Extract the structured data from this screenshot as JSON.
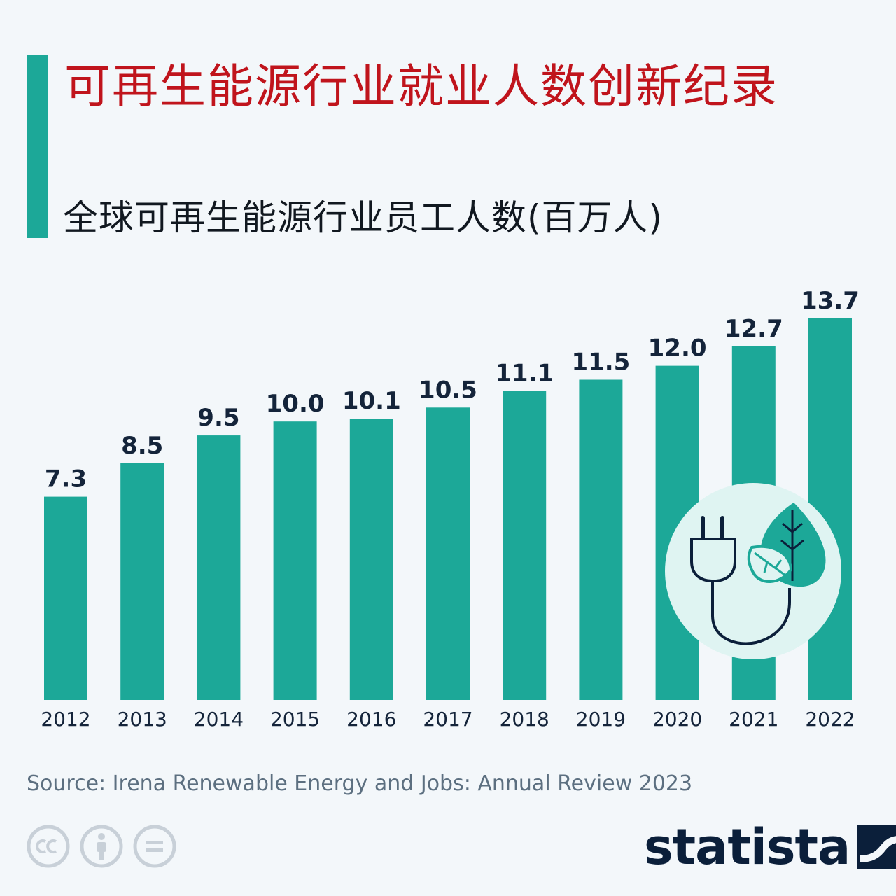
{
  "header": {
    "title": "可再生能源行业就业人数创新纪录",
    "subtitle": "全球可再生能源行业员工人数(百万人)"
  },
  "chart_data": {
    "type": "bar",
    "categories": [
      "2012",
      "2013",
      "2014",
      "2015",
      "2016",
      "2017",
      "2018",
      "2019",
      "2020",
      "2021",
      "2022"
    ],
    "values": [
      7.3,
      8.5,
      9.5,
      10.0,
      10.1,
      10.5,
      11.1,
      11.5,
      12.0,
      12.7,
      13.7
    ],
    "value_labels": [
      "7.3",
      "8.5",
      "9.5",
      "10.0",
      "10.1",
      "10.5",
      "11.1",
      "11.5",
      "12.0",
      "12.7",
      "13.7"
    ],
    "ylim": [
      0,
      13.7
    ],
    "grid": false,
    "bar_color": "#1ca898",
    "label_color": "#14243a"
  },
  "footer": {
    "source": "Source: Irena Renewable Energy and Jobs: Annual Review 2023",
    "brand": "statista",
    "license_icons": [
      "cc-icon",
      "attribution-icon",
      "no-derivatives-icon"
    ]
  },
  "colors": {
    "accent": "#1ca898",
    "title": "#c0141c",
    "background": "#f3f7fa",
    "brand": "#0b1f3a"
  }
}
